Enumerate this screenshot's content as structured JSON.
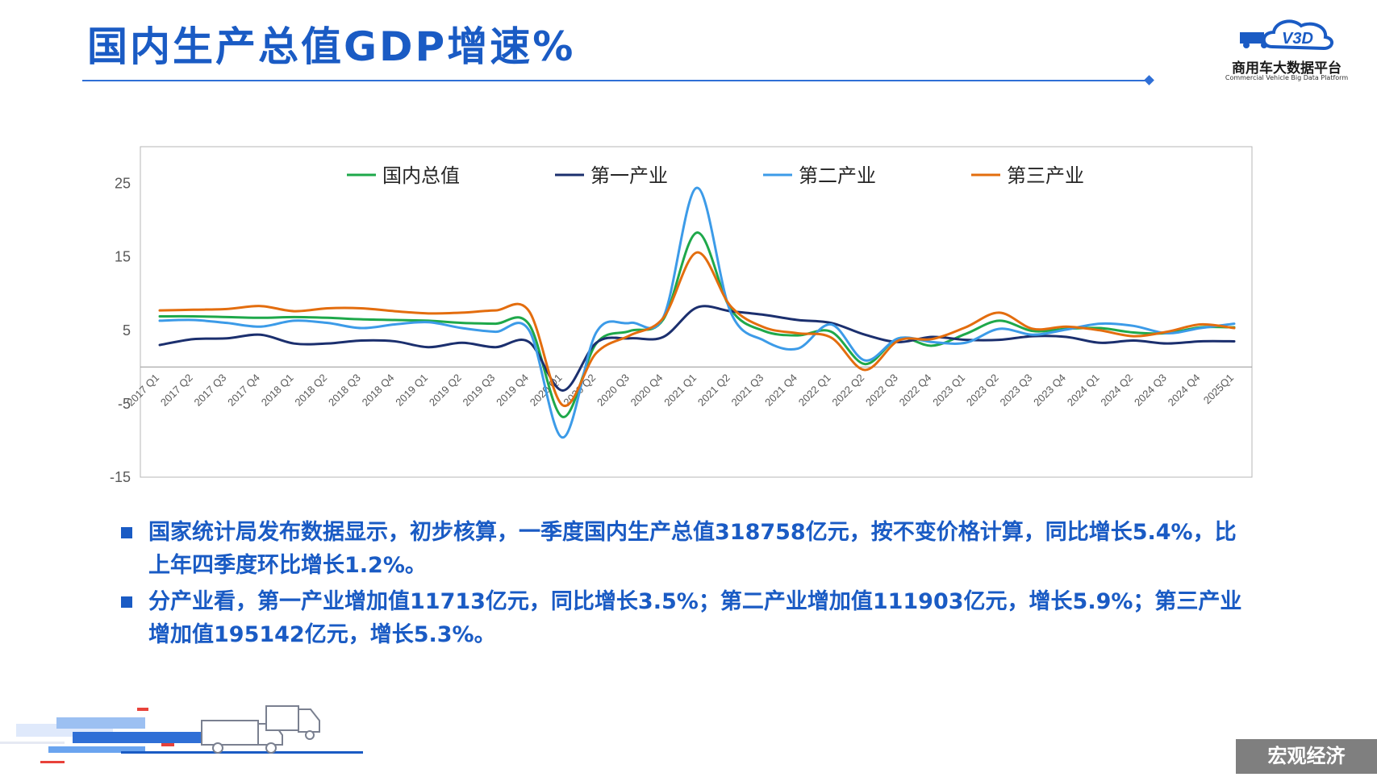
{
  "header": {
    "title": "国内生产总值GDP增速%",
    "logo_cn": "商用车大数据平台",
    "logo_en": "Commercial Vehicle Big Data Platform",
    "logo_mark": "V3D"
  },
  "chart_data": {
    "type": "line",
    "title": "",
    "xlabel": "",
    "ylabel": "",
    "ylim": [
      -15,
      30
    ],
    "yticks": [
      25,
      15,
      5,
      -5,
      -15
    ],
    "grid": false,
    "legend_position": "top",
    "categories": [
      "2017 Q1",
      "2017 Q2",
      "2017 Q3",
      "2017 Q4",
      "2018 Q1",
      "2018 Q2",
      "2018 Q3",
      "2018 Q4",
      "2019 Q1",
      "2019 Q2",
      "2019 Q3",
      "2019 Q4",
      "2020 Q1",
      "2020 Q2",
      "2020 Q3",
      "2020 Q4",
      "2021 Q1",
      "2021 Q2",
      "2021 Q3",
      "2021 Q4",
      "2022 Q1",
      "2022 Q2",
      "2022 Q3",
      "2022 Q4",
      "2023 Q1",
      "2023 Q2",
      "2023 Q3",
      "2023 Q4",
      "2024 Q1",
      "2024 Q2",
      "2024 Q3",
      "2024 Q4",
      "2025Q1"
    ],
    "series": [
      {
        "name": "国内总值",
        "color": "#1ea84a",
        "values": [
          6.9,
          6.9,
          6.8,
          6.7,
          6.8,
          6.7,
          6.5,
          6.4,
          6.3,
          6.0,
          5.9,
          5.8,
          -6.8,
          3.2,
          4.9,
          6.5,
          18.3,
          7.9,
          4.9,
          4.3,
          4.8,
          0.4,
          3.9,
          2.9,
          4.5,
          6.3,
          4.9,
          5.2,
          5.3,
          4.7,
          4.6,
          5.4,
          5.4
        ]
      },
      {
        "name": "第一产业",
        "color": "#1b2f6e",
        "values": [
          3.0,
          3.8,
          3.9,
          4.4,
          3.2,
          3.2,
          3.6,
          3.5,
          2.7,
          3.3,
          2.7,
          3.4,
          -3.2,
          3.3,
          3.9,
          4.1,
          8.1,
          7.6,
          7.1,
          6.4,
          6.0,
          4.4,
          3.4,
          4.1,
          3.7,
          3.7,
          4.2,
          4.1,
          3.3,
          3.6,
          3.2,
          3.5,
          3.5
        ]
      },
      {
        "name": "第二产业",
        "color": "#3c9be8",
        "values": [
          6.3,
          6.4,
          6.0,
          5.5,
          6.3,
          6.0,
          5.3,
          5.8,
          6.1,
          5.3,
          4.8,
          5.0,
          -9.6,
          4.7,
          6.0,
          6.8,
          24.4,
          7.5,
          3.6,
          2.5,
          5.8,
          0.9,
          3.9,
          3.4,
          3.3,
          5.2,
          4.4,
          5.1,
          5.9,
          5.6,
          4.6,
          5.3,
          5.9
        ]
      },
      {
        "name": "第三产业",
        "color": "#e36d0e",
        "values": [
          7.7,
          7.8,
          7.9,
          8.3,
          7.6,
          8.0,
          8.0,
          7.6,
          7.3,
          7.4,
          7.7,
          7.6,
          -5.2,
          1.9,
          4.3,
          6.7,
          15.6,
          8.3,
          5.4,
          4.6,
          4.0,
          -0.4,
          3.6,
          3.8,
          5.4,
          7.4,
          5.2,
          5.5,
          5.0,
          4.2,
          4.8,
          5.8,
          5.3
        ]
      }
    ]
  },
  "bullets": [
    "国家统计局发布数据显示，初步核算，一季度国内生产总值318758亿元，按不变价格计算，同比增长5.4%，比上年四季度环比增长1.2%。",
    "分产业看，第一产业增加值11713亿元，同比增长3.5%；第二产业增加值111903亿元，增长5.9%；第三产业增加值195142亿元，增长5.3%。"
  ],
  "footer": {
    "tag": "宏观经济"
  },
  "colors": {
    "accent": "#1a5bc4",
    "footer_bg": "#7f7f7f"
  }
}
